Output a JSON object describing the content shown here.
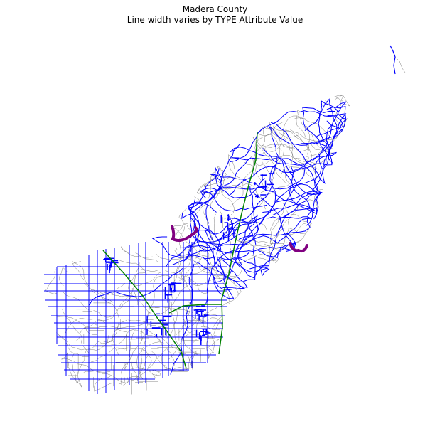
{
  "figure": {
    "title_line1": "Madera County",
    "title_line2": "Line width varies by TYPE Attribute Value"
  },
  "map": {
    "region": "Madera County",
    "layers": [
      {
        "name": "minor-roads",
        "color": "#808080"
      },
      {
        "name": "local-roads",
        "color": "#0000ff"
      },
      {
        "name": "highways",
        "color": "#008000"
      },
      {
        "name": "rivers",
        "color": "#800080"
      }
    ]
  }
}
